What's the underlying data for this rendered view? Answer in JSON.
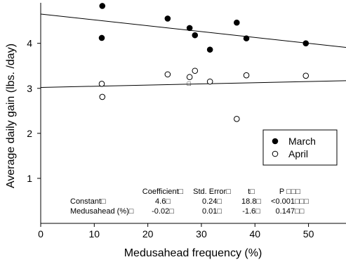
{
  "chart_data": {
    "type": "scatter",
    "xlabel": "Medusahead frequency (%)",
    "ylabel": "Average daily gain (lbs. /day)",
    "xlim": [
      0,
      57
    ],
    "ylim": [
      0,
      4.9
    ],
    "xticks": [
      0,
      10,
      20,
      30,
      40,
      50
    ],
    "yticks": [
      1,
      2,
      3,
      4
    ],
    "grid": false,
    "legend_position": "right",
    "series": [
      {
        "name": "March",
        "marker": "filled-circle",
        "points": [
          [
            11.5,
            4.83
          ],
          [
            11.4,
            4.12
          ],
          [
            23.7,
            4.55
          ],
          [
            27.8,
            4.34
          ],
          [
            28.8,
            4.18
          ],
          [
            31.6,
            3.86
          ],
          [
            36.6,
            4.46
          ],
          [
            38.4,
            4.11
          ],
          [
            49.5,
            4.0
          ]
        ],
        "fit": [
          [
            0,
            4.65
          ],
          [
            57,
            3.91
          ]
        ]
      },
      {
        "name": "April",
        "marker": "open-circle",
        "points": [
          [
            11.4,
            3.1
          ],
          [
            11.5,
            2.81
          ],
          [
            23.7,
            3.31
          ],
          [
            27.8,
            3.25
          ],
          [
            28.8,
            3.39
          ],
          [
            31.6,
            3.15
          ],
          [
            36.6,
            2.32
          ],
          [
            38.4,
            3.29
          ],
          [
            49.5,
            3.28
          ]
        ],
        "fit": [
          [
            0,
            3.02
          ],
          [
            57,
            3.17
          ]
        ]
      }
    ],
    "stats_table": {
      "headers": [
        "Coefficient□",
        "Std. Error□",
        "t□",
        "P □□□"
      ],
      "rows": [
        {
          "label": "Constant□",
          "values": [
            "4.6□",
            "0.24□",
            "18.8□",
            "<0.001□□□"
          ]
        },
        {
          "label": "Medusahead (%)□",
          "values": [
            "-0.02□",
            "0.01□",
            "-1.6□",
            "0.147□□"
          ]
        }
      ]
    },
    "stray_marks": [
      {
        "text": "□",
        "x": 27.7,
        "y": 3.12
      }
    ]
  }
}
